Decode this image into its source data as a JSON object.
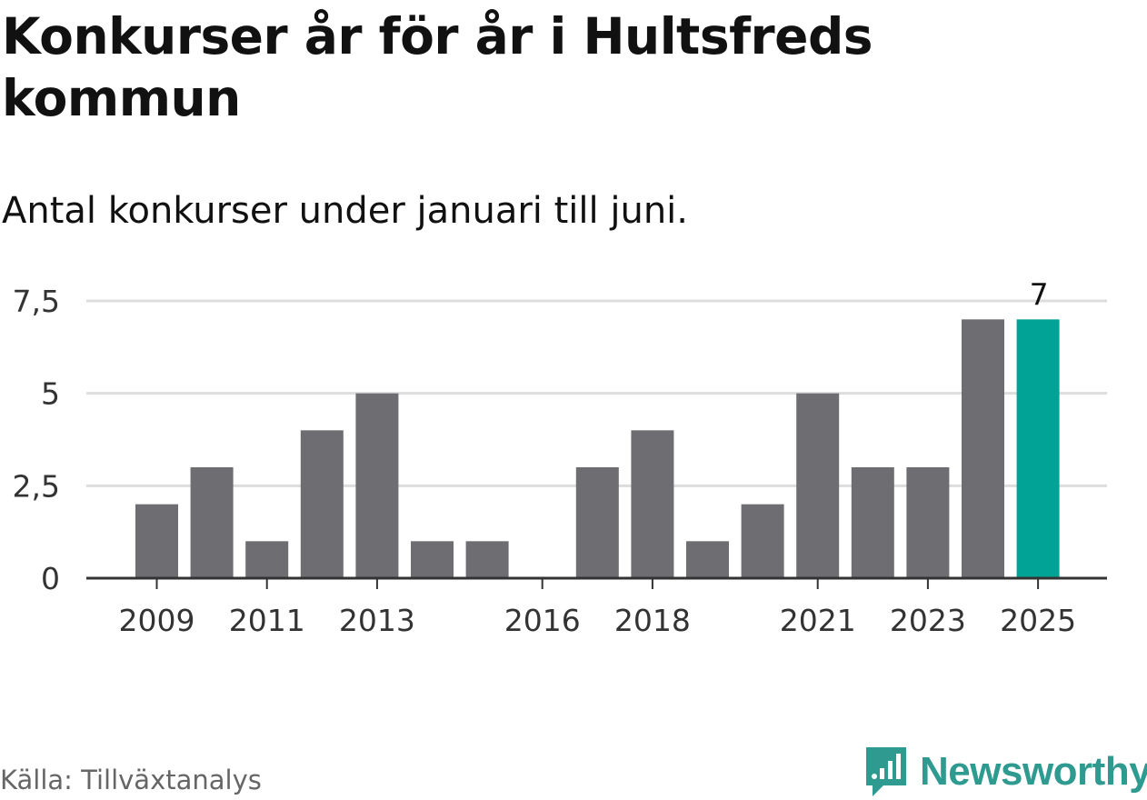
{
  "header": {
    "title": "Konkurser år för år i Hultsfreds kommun",
    "subtitle": "Antal konkurser under januari till juni."
  },
  "footer": {
    "source": "Källa: Tillväxtanalys",
    "brand": "Newsworthy",
    "brand_icon": "newsworthy-logo-icon"
  },
  "colors": {
    "bar": "#6e6d72",
    "highlight": "#00a396",
    "grid": "#dddddd",
    "axis": "#333333",
    "brand": "#2e9a90"
  },
  "chart_data": {
    "type": "bar",
    "title": "Konkurser år för år i Hultsfreds kommun",
    "subtitle": "Antal konkurser under januari till juni.",
    "xlabel": "",
    "ylabel": "",
    "categories": [
      2009,
      2010,
      2011,
      2012,
      2013,
      2014,
      2015,
      2016,
      2017,
      2018,
      2019,
      2020,
      2021,
      2022,
      2023,
      2024,
      2025
    ],
    "values": [
      2,
      3,
      1,
      4,
      5,
      1,
      1,
      0,
      3,
      4,
      1,
      2,
      5,
      3,
      3,
      7,
      7
    ],
    "highlight_index": 16,
    "highlight_label": "7",
    "ylim": [
      0,
      7.5
    ],
    "yticks": [
      0,
      2.5,
      5,
      7.5
    ],
    "ytick_labels": [
      "0",
      "2,5",
      "5",
      "7,5"
    ],
    "xtick_labels": [
      "2009",
      "2011",
      "2013",
      "2016",
      "2018",
      "2021",
      "2023",
      "2025"
    ],
    "grid": true,
    "legend": "none"
  }
}
